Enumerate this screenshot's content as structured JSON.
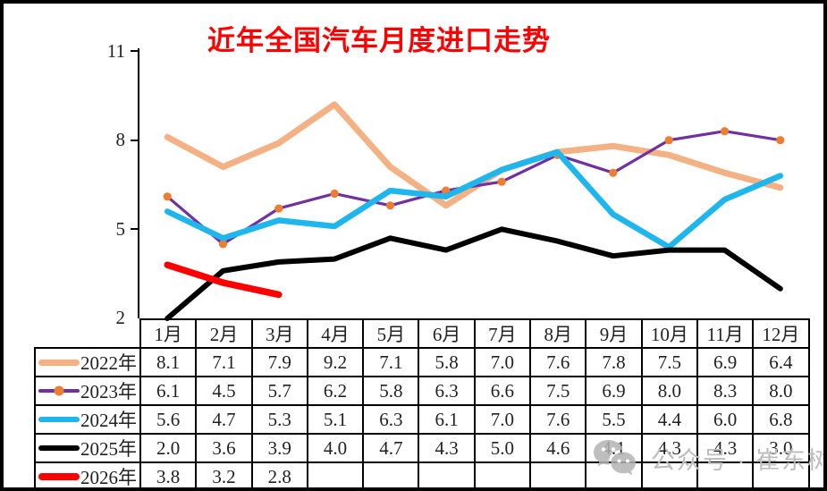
{
  "title": "近年全国汽车月度进口走势",
  "colors": {
    "title": "#FF0000",
    "border": "#000000",
    "watermark": "#BDBDBD"
  },
  "axis": {
    "yticks": [
      "11",
      "8",
      "5",
      "2"
    ]
  },
  "watermark": {
    "icon": "wechat-icon",
    "text": "公众号 · 崔东树"
  },
  "chart_data": {
    "type": "line",
    "title": "近年全国汽车月度进口走势",
    "categories": [
      "1月",
      "2月",
      "3月",
      "4月",
      "5月",
      "6月",
      "7月",
      "8月",
      "9月",
      "10月",
      "11月",
      "12月"
    ],
    "xlabel": "",
    "ylabel": "",
    "ylim": [
      2,
      11
    ],
    "yticks": [
      2,
      5,
      8,
      11
    ],
    "grid": false,
    "legend_position": "table-left",
    "series": [
      {
        "name": "2022年",
        "color": "#F4B183",
        "line_width": 7,
        "marker": false,
        "values": [
          8.1,
          7.1,
          7.9,
          9.2,
          7.1,
          5.8,
          7.0,
          7.6,
          7.8,
          7.5,
          6.9,
          6.4
        ]
      },
      {
        "name": "2023年",
        "color": "#7030A0",
        "line_width": 3.2,
        "marker": true,
        "marker_color": "#ED7D31",
        "marker_size": 4.6,
        "values": [
          6.1,
          4.5,
          5.7,
          6.2,
          5.8,
          6.3,
          6.6,
          7.5,
          6.9,
          8.0,
          8.3,
          8.0
        ]
      },
      {
        "name": "2024年",
        "color": "#1FB6EE",
        "line_width": 6.5,
        "marker": false,
        "values": [
          5.6,
          4.7,
          5.3,
          5.1,
          6.3,
          6.1,
          7.0,
          7.6,
          5.5,
          4.4,
          6.0,
          6.8
        ]
      },
      {
        "name": "2025年",
        "color": "#000000",
        "line_width": 6,
        "marker": false,
        "values": [
          2.0,
          3.6,
          3.9,
          4.0,
          4.7,
          4.3,
          5.0,
          4.6,
          4.1,
          4.3,
          4.3,
          3.0
        ]
      },
      {
        "name": "2026年",
        "color": "#FF0000",
        "line_width": 7.5,
        "marker": false,
        "values": [
          3.8,
          3.2,
          2.8,
          null,
          null,
          null,
          null,
          null,
          null,
          null,
          null,
          null
        ]
      }
    ]
  },
  "table": {
    "months": [
      "1月",
      "2月",
      "3月",
      "4月",
      "5月",
      "6月",
      "7月",
      "8月",
      "9月",
      "10月",
      "11月",
      "12月"
    ],
    "rows": [
      {
        "label": "2022年",
        "values": [
          "8.1",
          "7.1",
          "7.9",
          "9.2",
          "7.1",
          "5.8",
          "7.0",
          "7.6",
          "7.8",
          "7.5",
          "6.9",
          "6.4"
        ]
      },
      {
        "label": "2023年",
        "values": [
          "6.1",
          "4.5",
          "5.7",
          "6.2",
          "5.8",
          "6.3",
          "6.6",
          "7.5",
          "6.9",
          "8.0",
          "8.3",
          "8.0"
        ]
      },
      {
        "label": "2024年",
        "values": [
          "5.6",
          "4.7",
          "5.3",
          "5.1",
          "6.3",
          "6.1",
          "7.0",
          "7.6",
          "5.5",
          "4.4",
          "6.0",
          "6.8"
        ]
      },
      {
        "label": "2025年",
        "values": [
          "2.0",
          "3.6",
          "3.9",
          "4.0",
          "4.7",
          "4.3",
          "5.0",
          "4.6",
          "4.1",
          "4.3",
          "4.3",
          "3.0"
        ]
      },
      {
        "label": "2026年",
        "values": [
          "3.8",
          "3.2",
          "2.8",
          "",
          "",
          "",
          "",
          "",
          "",
          "",
          "",
          ""
        ]
      }
    ]
  }
}
